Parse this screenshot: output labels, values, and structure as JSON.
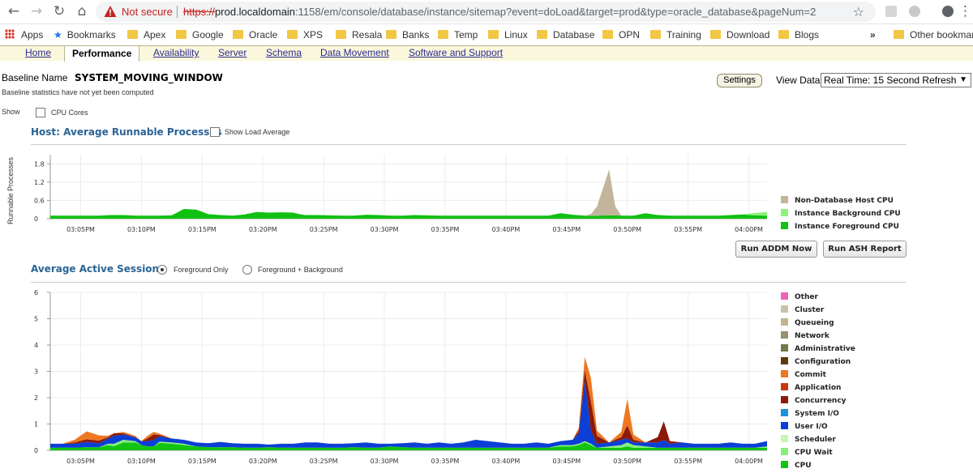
{
  "browser": {
    "security_label": "Not secure",
    "url_scheme": "https://",
    "url_host": "prod.localdomain",
    "url_rest": ":1158/em/console/database/instance/sitemap?event=doLoad&target=prod&type=oracle_database&pageNum=2"
  },
  "bookmarks": {
    "apps": "Apps",
    "bookmarks": "Bookmarks",
    "folders": [
      "Apex",
      "Google",
      "Oracle",
      "XPS",
      "Resala",
      "Banks",
      "Temp",
      "Linux",
      "Database",
      "OPN",
      "Training",
      "Download",
      "Blogs"
    ],
    "overflow": "»",
    "other": "Other bookmarks"
  },
  "tabs": [
    "Home",
    "Performance",
    "Availability",
    "Server",
    "Schema",
    "Data Movement",
    "Software and Support"
  ],
  "baseline": {
    "label": "Baseline Name",
    "value": "SYSTEM_MOVING_WINDOW",
    "note": "Baseline statistics have not yet been computed"
  },
  "show": {
    "label": "Show",
    "cpu_cores": "CPU Cores"
  },
  "settings_button": "Settings",
  "view_data": {
    "label": "View Data",
    "selected": "Real Time: 15 Second Refresh"
  },
  "host_chart": {
    "title": "Host: Average Runnable Processes",
    "show_load_average": "Show Load Average",
    "ylabel": "Runnable Processes"
  },
  "buttons": {
    "run_addm": "Run ADDM Now",
    "run_ash": "Run ASH Report"
  },
  "aas_chart": {
    "title": "Average Active Sessions",
    "foreground_only": "Foreground Only",
    "foreground_background": "Foreground + Background"
  },
  "colors": {
    "non_db_host_cpu": "#c2b59b",
    "instance_background_cpu": "#8ff07a",
    "instance_foreground_cpu": "#11c111",
    "other": "#f062b4",
    "cluster": "#c9c3ac",
    "queueing": "#c3b490",
    "network": "#9a8f72",
    "administrative": "#6e7a4a",
    "configuration": "#5c3a10",
    "commit": "#ee7722",
    "application": "#c9360e",
    "concurrency": "#8b1a0a",
    "system_io": "#1e90e0",
    "user_io": "#0b3fd6",
    "scheduler": "#c6f5b4",
    "cpu_wait": "#86f07a",
    "cpu": "#13c313",
    "dark_blue_spike": "#0f1e8c"
  },
  "chart_data": [
    {
      "type": "area",
      "title": "Host: Average Runnable Processes",
      "ylabel": "Runnable Processes",
      "x_ticks": [
        "03:05PM",
        "03:10PM",
        "03:15PM",
        "03:20PM",
        "03:25PM",
        "03:30PM",
        "03:35PM",
        "03:40PM",
        "03:45PM",
        "03:50PM",
        "03:55PM",
        "04:00PM"
      ],
      "y_ticks": [
        "0",
        "0.6",
        "1.2",
        "1.8"
      ],
      "ylim": [
        0,
        2.1
      ],
      "x_minutes": [
        0,
        2,
        4,
        6,
        6.8,
        8,
        10,
        12,
        14,
        15,
        16,
        18,
        20,
        22,
        24,
        26,
        28,
        30,
        32,
        34,
        36,
        38,
        40,
        41,
        42,
        44,
        46,
        48,
        50,
        52,
        54,
        56,
        58,
        60,
        62,
        64,
        66,
        68,
        70,
        72,
        74,
        76,
        78,
        80,
        82,
        84,
        86,
        88,
        89,
        90,
        92,
        93,
        94,
        96,
        98,
        100,
        102,
        104,
        106,
        108,
        110,
        112,
        114,
        116,
        118
      ],
      "series": [
        {
          "name": "Instance Foreground CPU",
          "values": [
            0.1,
            0.1,
            0.1,
            0.1,
            0.1,
            0.1,
            0.12,
            0.12,
            0.1,
            0.1,
            0.1,
            0.1,
            0.11,
            0.32,
            0.3,
            0.15,
            0.12,
            0.1,
            0.14,
            0.22,
            0.2,
            0.21,
            0.2,
            0.15,
            0.12,
            0.12,
            0.11,
            0.1,
            0.1,
            0.13,
            0.12,
            0.1,
            0.1,
            0.12,
            0.11,
            0.1,
            0.1,
            0.1,
            0.1,
            0.1,
            0.1,
            0.1,
            0.1,
            0.1,
            0.1,
            0.18,
            0.13,
            0.1,
            0.1,
            0.1,
            0.11,
            0.11,
            0.1,
            0.1,
            0.18,
            0.12,
            0.1,
            0.1,
            0.1,
            0.1,
            0.1,
            0.12,
            0.14,
            0.11,
            0.1
          ]
        },
        {
          "name": "Instance Background CPU",
          "values": [
            0,
            0,
            0,
            0,
            0,
            0,
            0,
            0,
            0,
            0,
            0,
            0,
            0,
            0,
            0,
            0,
            0,
            0,
            0,
            0,
            0,
            0,
            0,
            0,
            0,
            0,
            0,
            0,
            0,
            0,
            0,
            0,
            0,
            0,
            0,
            0,
            0,
            0,
            0,
            0,
            0,
            0,
            0,
            0,
            0,
            0,
            0,
            0,
            0,
            0,
            0,
            0,
            0,
            0,
            0,
            0,
            0,
            0,
            0,
            0,
            0,
            0,
            0,
            0.08,
            0.12
          ]
        },
        {
          "name": "Non-Database Host CPU",
          "values": [
            0,
            0,
            0,
            0,
            0,
            0,
            0,
            0,
            0,
            0,
            0,
            0,
            0,
            0,
            0,
            0,
            0,
            0,
            0,
            0,
            0,
            0,
            0,
            0,
            0,
            0,
            0,
            0,
            0,
            0,
            0,
            0,
            0,
            0,
            0,
            0,
            0,
            0,
            0,
            0,
            0,
            0,
            0,
            0,
            0,
            0,
            0,
            0,
            0.05,
            0.3,
            1.5,
            0.3,
            0,
            0,
            0,
            0,
            0,
            0,
            0,
            0,
            0,
            0,
            0,
            0,
            0
          ]
        }
      ],
      "legend": [
        "Non-Database Host CPU",
        "Instance Background CPU",
        "Instance Foreground CPU"
      ],
      "legend_position": "right"
    },
    {
      "type": "area",
      "title": "Average Active Sessions",
      "x_ticks": [
        "03:05PM",
        "03:10PM",
        "03:15PM",
        "03:20PM",
        "03:25PM",
        "03:30PM",
        "03:35PM",
        "03:40PM",
        "03:45PM",
        "03:50PM",
        "03:55PM",
        "04:00PM"
      ],
      "y_ticks": [
        "0",
        "1",
        "2",
        "3",
        "4",
        "5",
        "6"
      ],
      "ylim": [
        0,
        6
      ],
      "x_minutes": [
        0,
        2,
        4,
        6,
        8,
        9.5,
        10.5,
        12,
        14,
        15,
        16,
        17,
        18,
        20,
        22,
        24,
        26,
        28,
        30,
        32,
        34,
        36,
        38,
        40,
        42,
        44,
        46,
        48,
        50,
        52,
        54,
        56,
        58,
        60,
        62,
        64,
        66,
        68,
        70,
        72,
        74,
        76,
        78,
        80,
        82,
        84,
        86,
        87,
        88,
        89,
        90,
        92,
        94,
        95,
        96,
        98,
        100,
        101,
        102,
        104,
        106,
        108,
        110,
        112,
        114,
        116,
        118
      ],
      "series": [
        {
          "name": "CPU",
          "values": [
            0.1,
            0.1,
            0.1,
            0.12,
            0.12,
            0.2,
            0.15,
            0.3,
            0.3,
            0.2,
            0.15,
            0.15,
            0.28,
            0.25,
            0.2,
            0.15,
            0.12,
            0.12,
            0.12,
            0.1,
            0.1,
            0.12,
            0.1,
            0.1,
            0.1,
            0.1,
            0.1,
            0.1,
            0.12,
            0.1,
            0.1,
            0.15,
            0.12,
            0.1,
            0.1,
            0.1,
            0.1,
            0.1,
            0.1,
            0.1,
            0.1,
            0.1,
            0.1,
            0.1,
            0.1,
            0.15,
            0.15,
            0.2,
            0.3,
            0.2,
            0.1,
            0.1,
            0.1,
            0.15,
            0.1,
            0.1,
            0.1,
            0.1,
            0.1,
            0.1,
            0.1,
            0.1,
            0.1,
            0.1,
            0.1,
            0.1,
            0.1
          ]
        },
        {
          "name": "CPU Wait",
          "values": [
            0,
            0,
            0,
            0,
            0,
            0.05,
            0.1,
            0.1,
            0.05,
            0,
            0,
            0,
            0.05,
            0.05,
            0.05,
            0,
            0,
            0,
            0,
            0,
            0,
            0,
            0,
            0,
            0,
            0,
            0,
            0,
            0,
            0,
            0,
            0,
            0,
            0,
            0,
            0,
            0,
            0,
            0,
            0,
            0,
            0,
            0,
            0,
            0,
            0.05,
            0.05,
            0.05,
            0.05,
            0.05,
            0,
            0.05,
            0.1,
            0.15,
            0.1,
            0.05,
            0,
            0,
            0,
            0,
            0,
            0,
            0,
            0,
            0,
            0,
            0.05
          ]
        },
        {
          "name": "User I/O",
          "values": [
            0.15,
            0.15,
            0.15,
            0.2,
            0.15,
            0.2,
            0.3,
            0.2,
            0.15,
            0.15,
            0.2,
            0.25,
            0.2,
            0.15,
            0.15,
            0.15,
            0.15,
            0.2,
            0.15,
            0.15,
            0.15,
            0.1,
            0.15,
            0.15,
            0.2,
            0.2,
            0.15,
            0.15,
            0.15,
            0.2,
            0.15,
            0.1,
            0.15,
            0.2,
            0.15,
            0.2,
            0.15,
            0.2,
            0.3,
            0.25,
            0.2,
            0.15,
            0.15,
            0.2,
            0.15,
            0.15,
            0.2,
            0.4,
            2.3,
            0.5,
            0.15,
            0.15,
            0.2,
            0.15,
            0.1,
            0.15,
            0.2,
            0.3,
            0.15,
            0.2,
            0.15,
            0.15,
            0.15,
            0.2,
            0.15,
            0.15,
            0.2
          ]
        },
        {
          "name": "Concurrency",
          "values": [
            0,
            0,
            0.05,
            0.1,
            0.1,
            0.05,
            0.1,
            0.05,
            0,
            0,
            0.1,
            0.2,
            0.05,
            0,
            0,
            0,
            0,
            0,
            0,
            0,
            0,
            0,
            0,
            0,
            0,
            0,
            0,
            0,
            0,
            0,
            0,
            0,
            0,
            0,
            0,
            0,
            0,
            0,
            0,
            0,
            0,
            0,
            0,
            0,
            0,
            0,
            0,
            0.1,
            0.4,
            1.1,
            0.3,
            0,
            0.1,
            0.5,
            0.1,
            0,
            0.2,
            0.7,
            0.1,
            0,
            0,
            0,
            0,
            0,
            0,
            0,
            0
          ]
        },
        {
          "name": "Commit",
          "values": [
            0,
            0,
            0.1,
            0.3,
            0.2,
            0.05,
            0,
            0.05,
            0.05,
            0,
            0.1,
            0.1,
            0.05,
            0,
            0,
            0,
            0,
            0,
            0,
            0,
            0,
            0,
            0,
            0,
            0,
            0,
            0,
            0,
            0,
            0,
            0,
            0,
            0,
            0,
            0,
            0,
            0,
            0,
            0,
            0,
            0,
            0,
            0,
            0,
            0,
            0,
            0,
            0.1,
            0.5,
            0.9,
            0.2,
            0,
            0.2,
            1.0,
            0.2,
            0,
            0,
            0,
            0,
            0,
            0,
            0,
            0,
            0,
            0,
            0,
            0
          ]
        }
      ],
      "legend": [
        "Other",
        "Cluster",
        "Queueing",
        "Network",
        "Administrative",
        "Configuration",
        "Commit",
        "Application",
        "Concurrency",
        "System I/O",
        "User I/O",
        "Scheduler",
        "CPU Wait",
        "CPU"
      ],
      "legend_position": "right"
    }
  ]
}
